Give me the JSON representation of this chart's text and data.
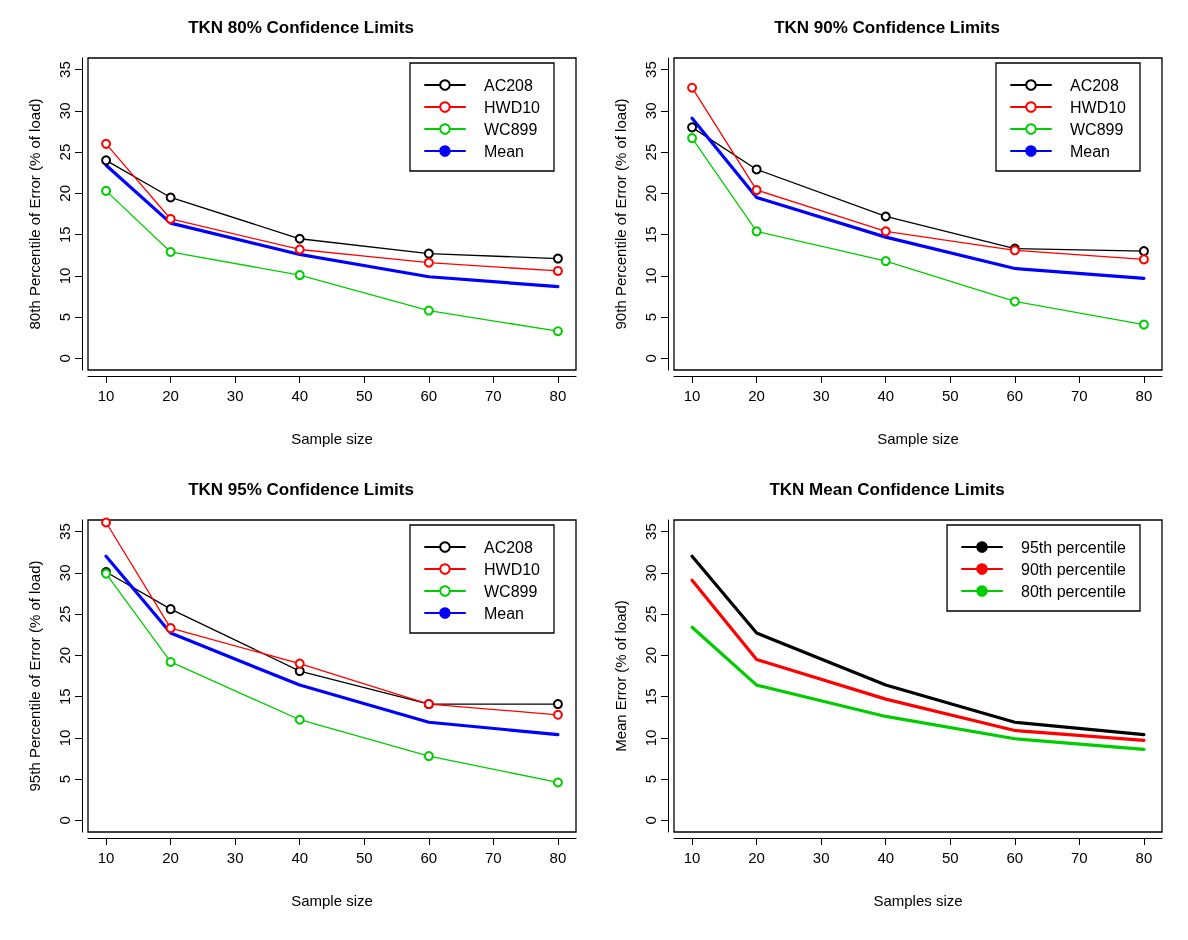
{
  "chart_data": [
    {
      "type": "line",
      "title": "TKN 80% Confidence Limits",
      "xlabel": "Sample size",
      "ylabel": "80th Percentile of Error (% of load)",
      "x": [
        10,
        20,
        40,
        60,
        80
      ],
      "xlim": [
        7.2,
        82.8
      ],
      "xticks": [
        10,
        20,
        30,
        40,
        50,
        60,
        70,
        80
      ],
      "ylim": [
        -1.4,
        36.4
      ],
      "yticks": [
        0,
        5,
        10,
        15,
        20,
        25,
        30,
        35
      ],
      "grid": false,
      "legend": "top right",
      "series": [
        {
          "name": "AC208",
          "color": "#000000",
          "marker": "circle",
          "values": [
            24,
            19.5,
            14.5,
            12.7,
            12.1
          ]
        },
        {
          "name": "HWD10",
          "color": "#ff0000",
          "marker": "circle",
          "values": [
            26,
            16.9,
            13.2,
            11.6,
            10.6
          ]
        },
        {
          "name": "WC899",
          "color": "#00cd00",
          "marker": "circle",
          "values": [
            20.3,
            12.9,
            10.1,
            5.8,
            3.3
          ]
        },
        {
          "name": "Mean",
          "color": "#0000ff",
          "marker": "none",
          "values": [
            23.4,
            16.4,
            12.6,
            9.9,
            8.7
          ]
        }
      ]
    },
    {
      "type": "line",
      "title": "TKN 90% Confidence Limits",
      "xlabel": "Sample size",
      "ylabel": "90th Percentile of Error (% of load)",
      "x": [
        10,
        20,
        40,
        60,
        80
      ],
      "xlim": [
        7.2,
        82.8
      ],
      "xticks": [
        10,
        20,
        30,
        40,
        50,
        60,
        70,
        80
      ],
      "ylim": [
        -1.4,
        36.4
      ],
      "yticks": [
        0,
        5,
        10,
        15,
        20,
        25,
        30,
        35
      ],
      "grid": false,
      "legend": "top right",
      "series": [
        {
          "name": "AC208",
          "color": "#000000",
          "marker": "circle",
          "values": [
            28,
            22.9,
            17.2,
            13.3,
            13
          ]
        },
        {
          "name": "HWD10",
          "color": "#ff0000",
          "marker": "circle",
          "values": [
            32.8,
            20.4,
            15.4,
            13.1,
            12
          ]
        },
        {
          "name": "WC899",
          "color": "#00cd00",
          "marker": "circle",
          "values": [
            26.7,
            15.4,
            11.8,
            6.9,
            4.1
          ]
        },
        {
          "name": "Mean",
          "color": "#0000ff",
          "marker": "none",
          "values": [
            29.1,
            19.5,
            14.7,
            10.9,
            9.7
          ]
        }
      ]
    },
    {
      "type": "line",
      "title": "TKN 95% Confidence Limits",
      "xlabel": "Sample size",
      "ylabel": "95th Percentile of Error (% of load)",
      "x": [
        10,
        20,
        40,
        60,
        80
      ],
      "xlim": [
        7.2,
        82.8
      ],
      "xticks": [
        10,
        20,
        30,
        40,
        50,
        60,
        70,
        80
      ],
      "ylim": [
        -1.4,
        36.4
      ],
      "yticks": [
        0,
        5,
        10,
        15,
        20,
        25,
        30,
        35
      ],
      "grid": false,
      "legend": "top right",
      "series": [
        {
          "name": "AC208",
          "color": "#000000",
          "marker": "circle",
          "values": [
            30.1,
            25.6,
            18.1,
            14.1,
            14.1
          ]
        },
        {
          "name": "HWD10",
          "color": "#ff0000",
          "marker": "circle",
          "values": [
            36.1,
            23.3,
            19,
            14.1,
            12.8
          ]
        },
        {
          "name": "WC899",
          "color": "#00cd00",
          "marker": "circle",
          "values": [
            29.9,
            19.2,
            12.2,
            7.8,
            4.6
          ]
        },
        {
          "name": "Mean",
          "color": "#0000ff",
          "marker": "none",
          "values": [
            32,
            22.7,
            16.4,
            11.9,
            10.4
          ]
        }
      ]
    },
    {
      "type": "line",
      "title": "TKN Mean Confidence Limits",
      "xlabel": "Samples size",
      "ylabel": "Mean Error (% of load)",
      "x": [
        10,
        20,
        40,
        60,
        80
      ],
      "xlim": [
        7.2,
        82.8
      ],
      "xticks": [
        10,
        20,
        30,
        40,
        50,
        60,
        70,
        80
      ],
      "ylim": [
        -1.4,
        36.4
      ],
      "yticks": [
        0,
        5,
        10,
        15,
        20,
        25,
        30,
        35
      ],
      "grid": false,
      "legend": "top right",
      "series": [
        {
          "name": "95th percentile",
          "color": "#000000",
          "marker": "none",
          "values": [
            32,
            22.7,
            16.4,
            11.9,
            10.4
          ]
        },
        {
          "name": "90th percentile",
          "color": "#ff0000",
          "marker": "none",
          "values": [
            29.1,
            19.5,
            14.7,
            10.9,
            9.7
          ]
        },
        {
          "name": "80th percentile",
          "color": "#00cd00",
          "marker": "none",
          "values": [
            23.4,
            16.4,
            12.6,
            9.9,
            8.6
          ]
        }
      ]
    }
  ]
}
